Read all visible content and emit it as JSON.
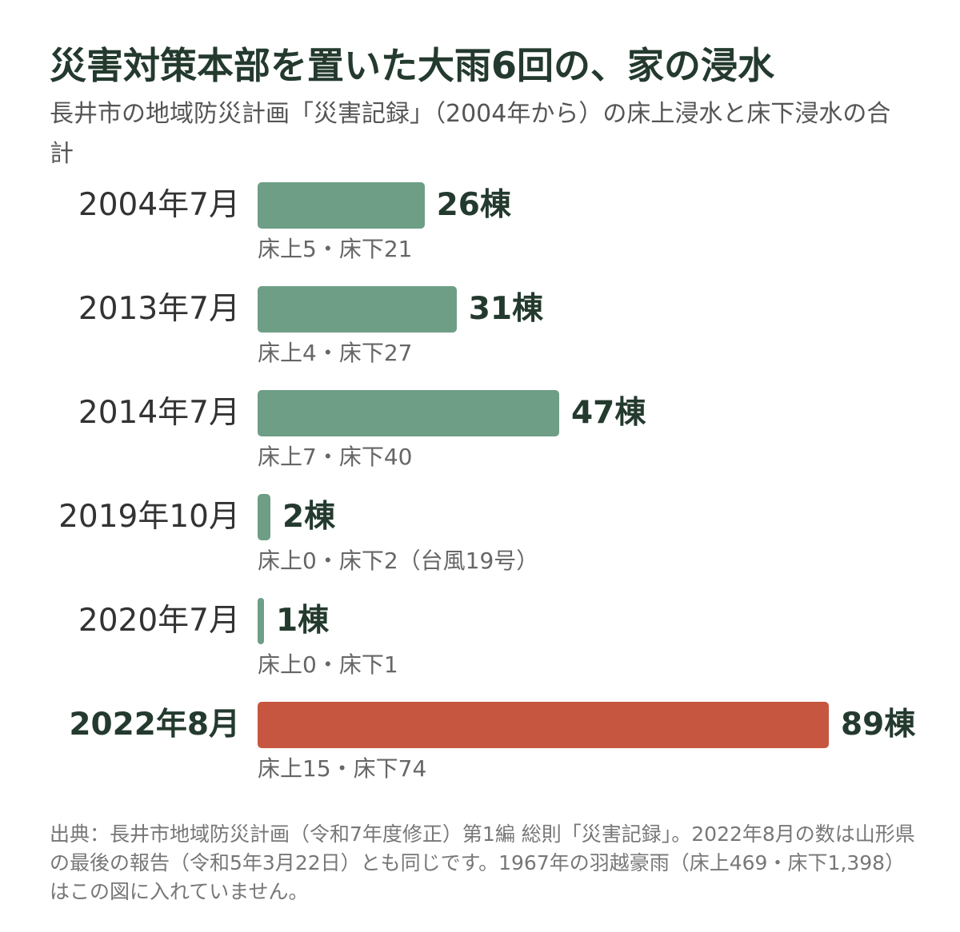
{
  "chart_data": {
    "type": "bar",
    "orientation": "horizontal",
    "title": "災害対策本部を置いた大雨6回の、家の浸水",
    "subtitle": "長井市の地域防災計画「災害記録」（2004年から）の床上浸水と床下浸水の合計",
    "categories": [
      "2004年7月",
      "2013年7月",
      "2014年7月",
      "2019年10月",
      "2020年7月",
      "2022年8月"
    ],
    "values": [
      26,
      31,
      47,
      2,
      1,
      89
    ],
    "value_labels": [
      "26棟",
      "31棟",
      "47棟",
      "2棟",
      "1棟",
      "89棟"
    ],
    "notes": [
      "床上5・床下21",
      "床上4・床下27",
      "床上7・床下40",
      "床上0・床下2（台風19号）",
      "床上0・床下1",
      "床上15・床下74"
    ],
    "highlight_index": 5,
    "colors": {
      "default": "#6e9e86",
      "highlight": "#c75640"
    },
    "xlim": [
      0,
      89
    ]
  },
  "source": "出典：長井市地域防災計画（令和7年度修正）第1編 総則「災害記録」。2022年8月の数は山形県の最後の報告（令和5年3月22日）とも同じです。1967年の羽越豪雨（床上469・床下1,398）はこの図に入れていません。"
}
